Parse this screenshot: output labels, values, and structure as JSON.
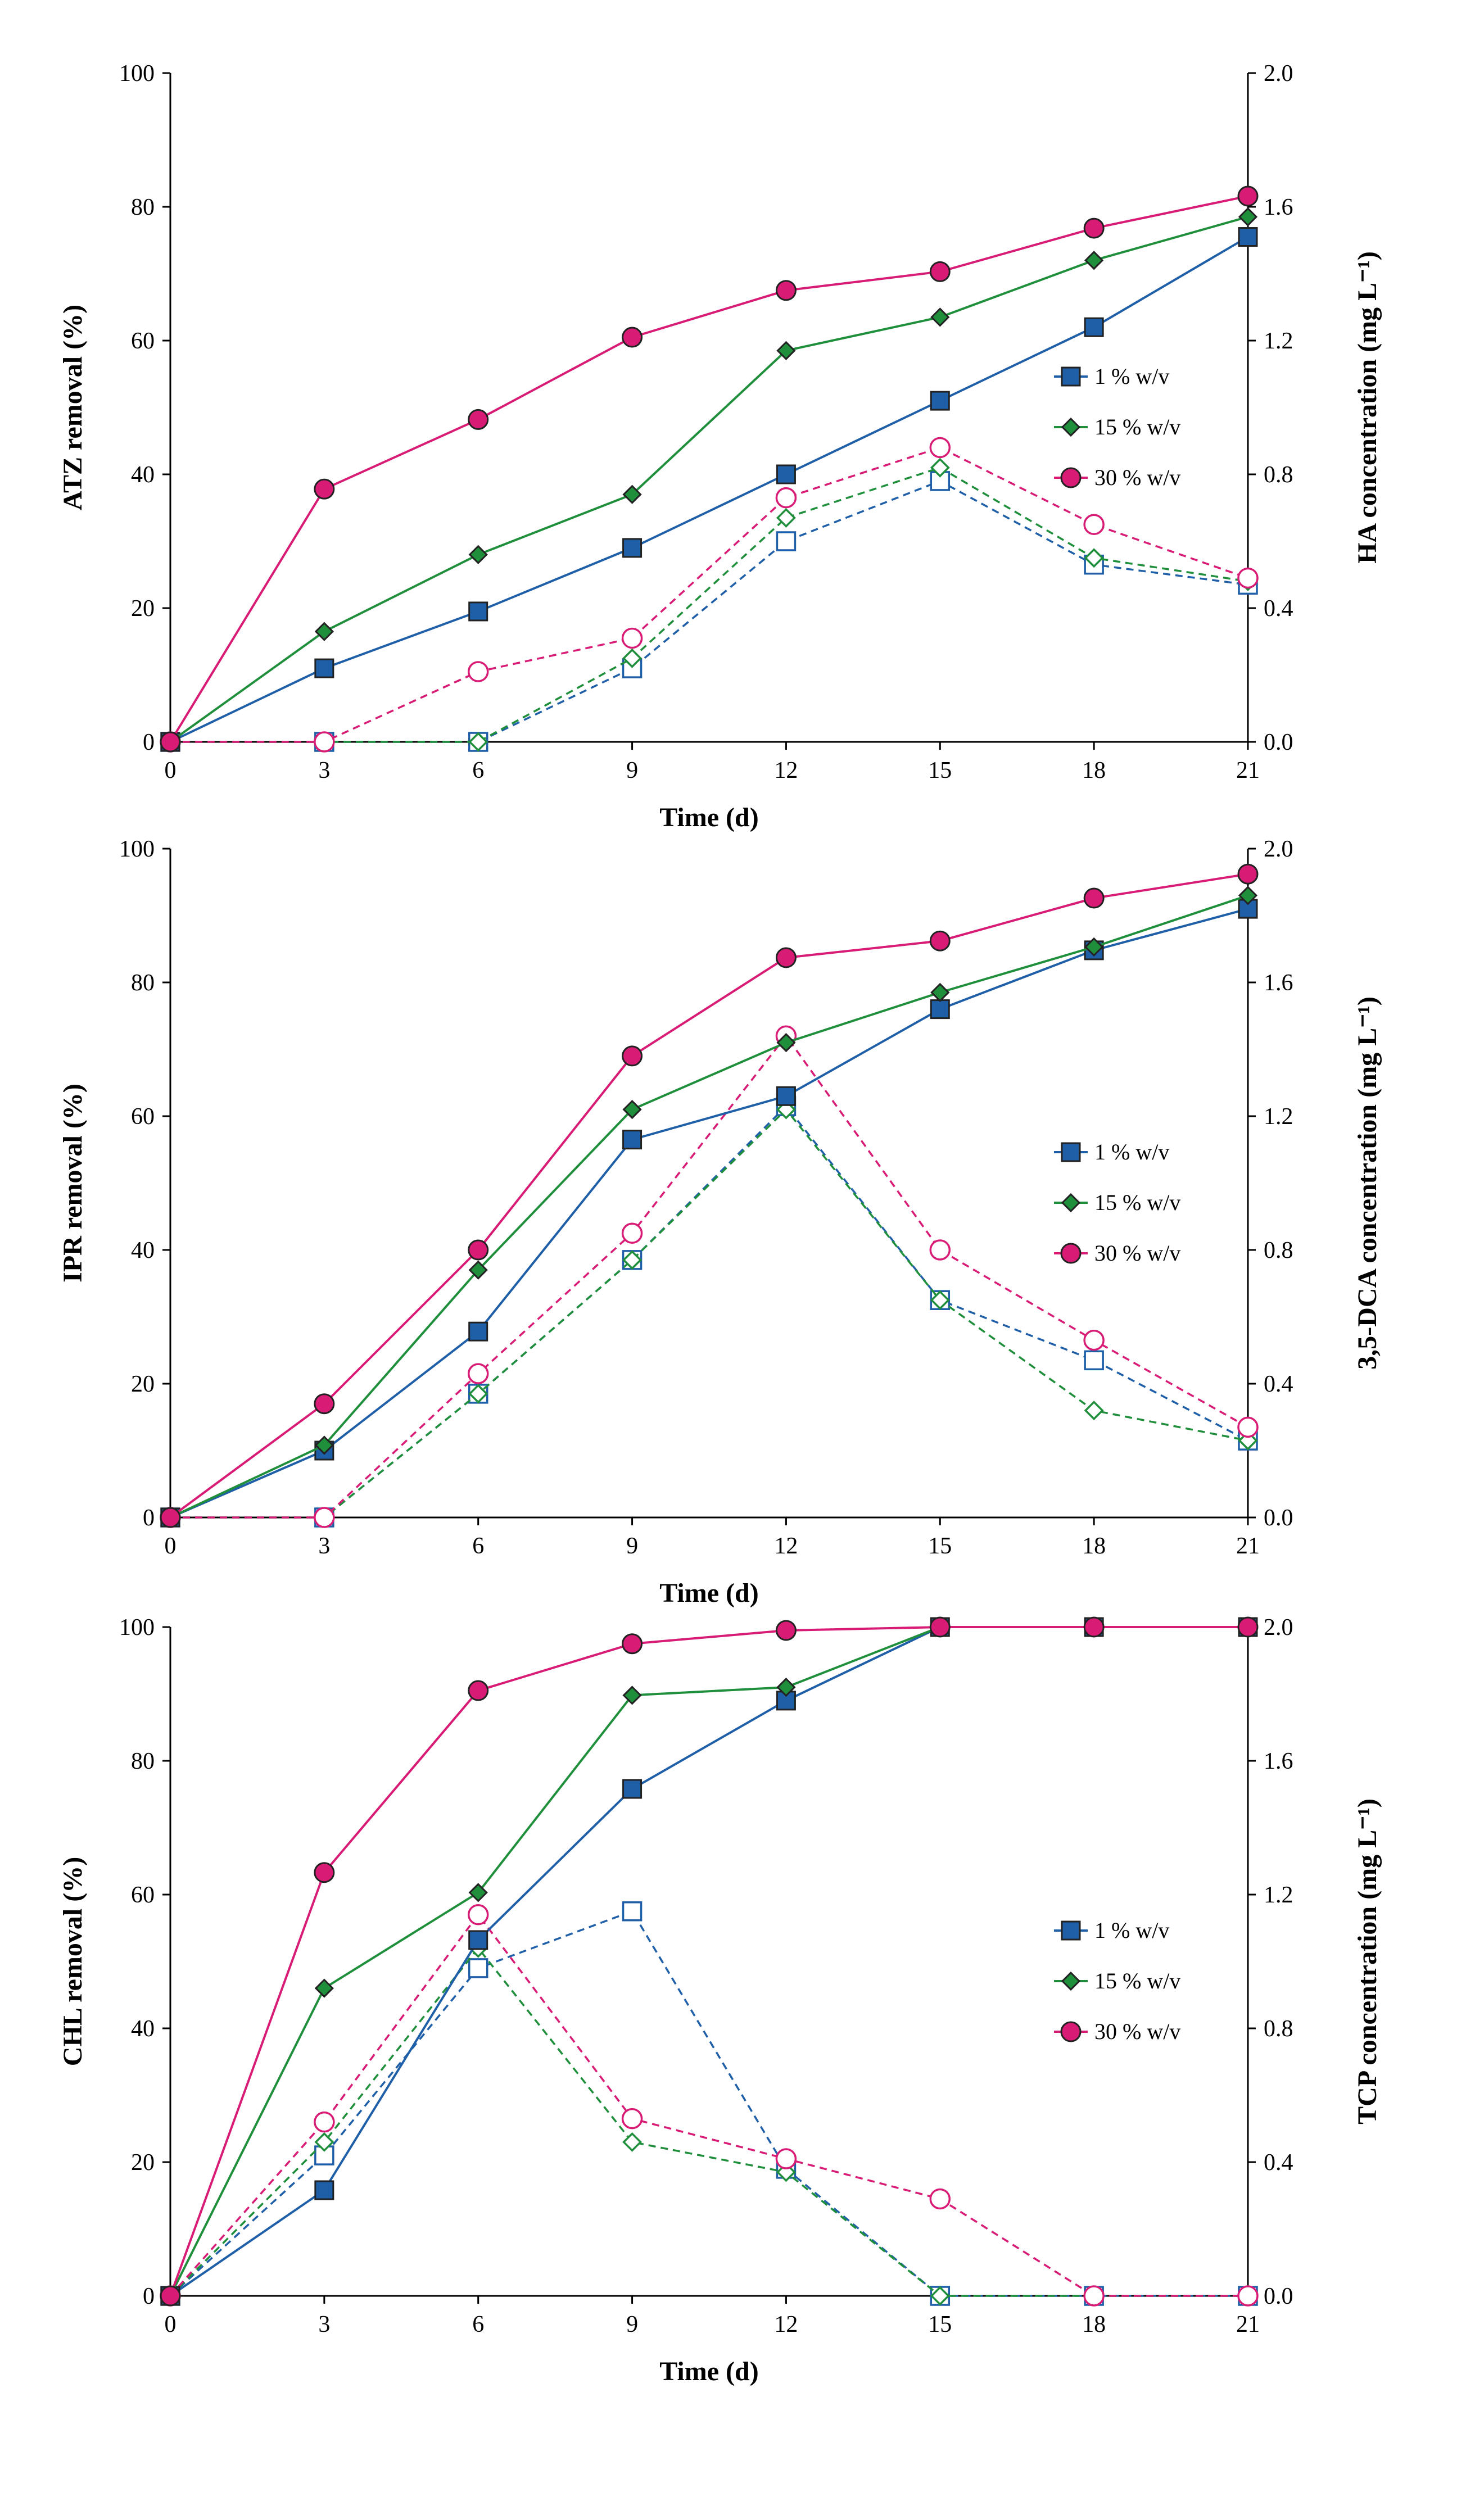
{
  "chart_data": [
    {
      "type": "line",
      "xlabel": "Time (d)",
      "ylabel": "ATZ removal (%)",
      "y2label": "HA concentration (mg L⁻¹)",
      "x": [
        0,
        3,
        6,
        9,
        12,
        15,
        18,
        21
      ],
      "xticks": [
        "0",
        "3",
        "6",
        "9",
        "12",
        "15",
        "18",
        "21"
      ],
      "yticks": [
        "0",
        "20",
        "40",
        "60",
        "80",
        "100"
      ],
      "y2ticks": [
        "0.0",
        "0.4",
        "0.8",
        "1.2",
        "1.6",
        "2.0"
      ],
      "ylim": [
        0,
        100
      ],
      "y2lim": [
        0,
        2.0
      ],
      "legend": [
        "1 % w/v",
        "15 % w/v",
        "30 % w/v"
      ],
      "legend_position": "center-right",
      "series": [
        {
          "name": "1 % w/v",
          "axis": "left",
          "style": "solid",
          "marker": "square",
          "color": "#1f5fa8",
          "values": [
            0,
            11,
            19.5,
            29,
            40,
            51,
            62,
            75.5
          ]
        },
        {
          "name": "15 % w/v",
          "axis": "left",
          "style": "solid",
          "marker": "diamond",
          "color": "#1f8f3c",
          "values": [
            0,
            16.5,
            28,
            37,
            58.5,
            63.5,
            72,
            78.5
          ]
        },
        {
          "name": "30 % w/v",
          "axis": "left",
          "style": "solid",
          "marker": "circle",
          "color": "#d81b75",
          "values": [
            0,
            37.8,
            48.2,
            60.5,
            67.5,
            70.3,
            76.8,
            81.6
          ]
        },
        {
          "name": "1 % w/v",
          "axis": "right",
          "style": "dashed",
          "marker": "square",
          "color": "#1f5fa8",
          "values": [
            0,
            0,
            0,
            0.22,
            0.6,
            0.78,
            0.53,
            0.47
          ]
        },
        {
          "name": "15 % w/v",
          "axis": "right",
          "style": "dashed",
          "marker": "diamond",
          "color": "#1f8f3c",
          "values": [
            0,
            0,
            0,
            0.25,
            0.67,
            0.82,
            0.55,
            0.48
          ]
        },
        {
          "name": "30 % w/v",
          "axis": "right",
          "style": "dashed",
          "marker": "circle",
          "color": "#d81b75",
          "values": [
            0,
            0,
            0.21,
            0.31,
            0.73,
            0.88,
            0.65,
            0.49
          ]
        }
      ]
    },
    {
      "type": "line",
      "xlabel": "Time (d)",
      "ylabel": "IPR removal (%)",
      "y2label": "3,5-DCA concentration (mg L⁻¹)",
      "x": [
        0,
        3,
        6,
        9,
        12,
        15,
        18,
        21
      ],
      "xticks": [
        "0",
        "3",
        "6",
        "9",
        "12",
        "15",
        "18",
        "21"
      ],
      "yticks": [
        "0",
        "20",
        "40",
        "60",
        "80",
        "100"
      ],
      "y2ticks": [
        "0.0",
        "0.4",
        "0.8",
        "1.2",
        "1.6",
        "2.0"
      ],
      "ylim": [
        0,
        100
      ],
      "y2lim": [
        0,
        2.0
      ],
      "legend": [
        "1 % w/v",
        "15 % w/v",
        "30 % w/v"
      ],
      "legend_position": "center-right",
      "series": [
        {
          "name": "1 % w/v",
          "axis": "left",
          "style": "solid",
          "marker": "square",
          "color": "#1f5fa8",
          "values": [
            0,
            10,
            27.8,
            56.5,
            63,
            76,
            84.8,
            91
          ]
        },
        {
          "name": "15 % w/v",
          "axis": "left",
          "style": "solid",
          "marker": "diamond",
          "color": "#1f8f3c",
          "values": [
            0,
            10.8,
            37,
            61,
            71,
            78.5,
            85.3,
            93
          ]
        },
        {
          "name": "30 % w/v",
          "axis": "left",
          "style": "solid",
          "marker": "circle",
          "color": "#d81b75",
          "values": [
            0,
            17,
            40,
            69,
            83.7,
            86.2,
            92.6,
            96.2
          ]
        },
        {
          "name": "1 % w/v",
          "axis": "right",
          "style": "dashed",
          "marker": "square",
          "color": "#1f5fa8",
          "values": [
            0,
            0,
            0.37,
            0.77,
            1.23,
            0.65,
            0.47,
            0.23
          ]
        },
        {
          "name": "15 % w/v",
          "axis": "right",
          "style": "dashed",
          "marker": "diamond",
          "color": "#1f8f3c",
          "values": [
            0,
            0,
            0.37,
            0.77,
            1.22,
            0.65,
            0.32,
            0.23
          ]
        },
        {
          "name": "30 % w/v",
          "axis": "right",
          "style": "dashed",
          "marker": "circle",
          "color": "#d81b75",
          "values": [
            0,
            0,
            0.43,
            0.85,
            1.44,
            0.8,
            0.53,
            0.27
          ]
        }
      ]
    },
    {
      "type": "line",
      "xlabel": "Time (d)",
      "ylabel": "CHL removal (%)",
      "y2label": "TCP concentration (mg L⁻¹)",
      "x": [
        0,
        3,
        6,
        9,
        12,
        15,
        18,
        21
      ],
      "xticks": [
        "0",
        "3",
        "6",
        "9",
        "12",
        "15",
        "18",
        "21"
      ],
      "yticks": [
        "0",
        "20",
        "40",
        "60",
        "80",
        "100"
      ],
      "y2ticks": [
        "0.0",
        "0.4",
        "0.8",
        "1.2",
        "1.6",
        "2.0"
      ],
      "ylim": [
        0,
        100
      ],
      "y2lim": [
        0,
        2.0
      ],
      "legend": [
        "1 % w/v",
        "15 % w/v",
        "30 % w/v"
      ],
      "legend_position": "center-right",
      "series": [
        {
          "name": "1 % w/v",
          "axis": "left",
          "style": "solid",
          "marker": "square",
          "color": "#1f5fa8",
          "values": [
            0,
            15.8,
            53.2,
            75.8,
            89,
            100,
            100,
            100
          ]
        },
        {
          "name": "15 % w/v",
          "axis": "left",
          "style": "solid",
          "marker": "diamond",
          "color": "#1f8f3c",
          "values": [
            0,
            46,
            60.3,
            89.8,
            91,
            100,
            100,
            100
          ]
        },
        {
          "name": "30 % w/v",
          "axis": "left",
          "style": "solid",
          "marker": "circle",
          "color": "#d81b75",
          "values": [
            0,
            63.3,
            90.5,
            97.5,
            99.5,
            100,
            100,
            100
          ]
        },
        {
          "name": "1 % w/v",
          "axis": "right",
          "style": "dashed",
          "marker": "square",
          "color": "#1f5fa8",
          "values": [
            0,
            0.42,
            0.98,
            1.15,
            0.38,
            0,
            0,
            0
          ]
        },
        {
          "name": "15 % w/v",
          "axis": "right",
          "style": "dashed",
          "marker": "diamond",
          "color": "#1f8f3c",
          "values": [
            0,
            0.46,
            1.04,
            0.46,
            0.37,
            0,
            0,
            0
          ]
        },
        {
          "name": "30 % w/v",
          "axis": "right",
          "style": "dashed",
          "marker": "circle",
          "color": "#d81b75",
          "values": [
            0,
            0.52,
            1.14,
            0.53,
            0.41,
            0.29,
            0,
            0
          ]
        }
      ]
    }
  ]
}
